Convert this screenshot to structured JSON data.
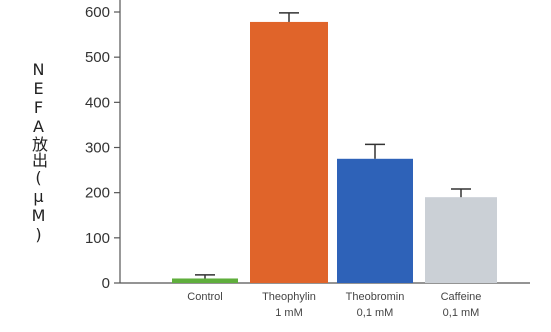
{
  "chart_data": {
    "type": "bar",
    "ylabel": "NEFA放出(μM)",
    "ylim": [
      0,
      600
    ],
    "yticks": [
      0,
      100,
      200,
      300,
      400,
      500,
      600
    ],
    "categories": [
      {
        "name": "Control",
        "dose": ""
      },
      {
        "name": "Theophylin",
        "dose": "1 mM"
      },
      {
        "name": "Theobromin",
        "dose": "0,1 mM"
      },
      {
        "name": "Caffeine",
        "dose": "0,1 mM"
      }
    ],
    "values": [
      10,
      578,
      275,
      190
    ],
    "errors": [
      8,
      20,
      32,
      18
    ],
    "colors": [
      "#5fae3c",
      "#e0642a",
      "#2e62b8",
      "#cbd0d6"
    ],
    "grid": false
  }
}
